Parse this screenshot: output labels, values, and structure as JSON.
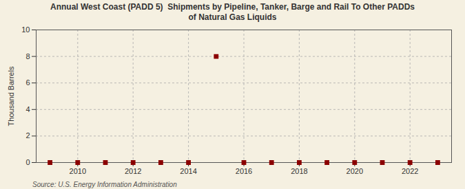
{
  "chart_data": {
    "type": "scatter",
    "title": "Annual West Coast (PADD 5)  Shipments by Pipeline, Tanker, Barge and Rail To Other PADDs\nof Natural Gas Liquids",
    "ylabel": "Thousand Barrels",
    "annotations": [
      "Source: U.S. Energy Information Administration"
    ],
    "x": [
      2009,
      2010,
      2011,
      2012,
      2013,
      2014,
      2015,
      2016,
      2017,
      2018,
      2019,
      2020,
      2021,
      2022,
      2023
    ],
    "values": [
      0,
      0,
      0,
      0,
      0,
      0,
      8,
      0,
      0,
      0,
      0,
      0,
      0,
      0,
      0
    ],
    "color": "#8b0000",
    "marker": "square",
    "xlim": [
      2008.5,
      2023.5
    ],
    "xticks": [
      2010,
      2012,
      2014,
      2016,
      2018,
      2020,
      2022
    ],
    "ylim": [
      0,
      10
    ],
    "yticks": [
      0,
      2,
      4,
      6,
      8,
      10
    ],
    "grid": true
  }
}
